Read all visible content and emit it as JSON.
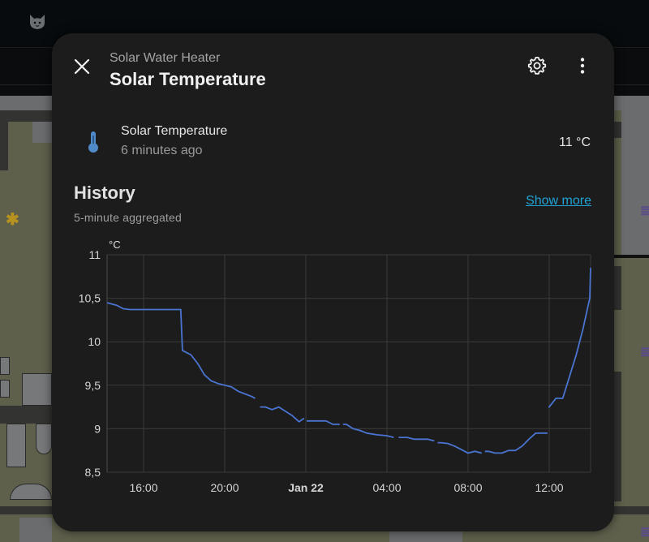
{
  "background": {
    "app_icon": "cat-icon",
    "floorplan_icons": [
      "light-bulb-icon",
      "radiator-icon",
      "radiator-icon",
      "radiator-icon"
    ]
  },
  "dialog": {
    "subtitle": "Solar Water Heater",
    "title": "Solar Temperature",
    "close_icon": "close-icon",
    "settings_icon": "gear-icon",
    "menu_icon": "dots-vertical-icon"
  },
  "entity": {
    "icon": "thermometer-icon",
    "name": "Solar Temperature",
    "last_changed": "6 minutes ago",
    "state": "11 °C"
  },
  "history": {
    "title": "History",
    "subtitle": "5-minute aggregated",
    "show_more": "Show more"
  },
  "colors": {
    "line": "#4a74d1",
    "link": "#20a3d6",
    "icon_thermo": "#4f8bc9",
    "dialog_bg": "#1c1c1c"
  },
  "chart_data": {
    "type": "line",
    "title": "",
    "xlabel": "",
    "ylabel": "°C",
    "ylim": [
      8.5,
      11
    ],
    "y_ticks": [
      "11",
      "10,5",
      "10",
      "9,5",
      "9",
      "8,5"
    ],
    "x_ticks": [
      "16:00",
      "20:00",
      "Jan 22",
      "04:00",
      "08:00",
      "12:00"
    ],
    "grid": true,
    "legend": "none",
    "series": [
      {
        "name": "Solar Temperature",
        "x": [
          "14:12",
          "14:20",
          "14:40",
          "15:00",
          "15:20",
          "16:00",
          "17:00",
          "17:50",
          "17:55",
          "18:20",
          "18:40",
          "19:00",
          "19:20",
          "19:40",
          "20:00",
          "20:20",
          "20:40",
          "21:00",
          "21:20",
          "21:30",
          "22:00",
          "22:20",
          "22:40",
          "23:00",
          "23:20",
          "23:40",
          "23:55",
          "00:10",
          "00:30",
          "01:00",
          "01:20",
          "01:40",
          "02:00",
          "02:20",
          "02:40",
          "03:00",
          "03:30",
          "04:00",
          "04:20",
          "05:00",
          "05:20",
          "06:00",
          "06:20",
          "06:40",
          "07:00",
          "07:20",
          "07:40",
          "08:00",
          "08:20",
          "08:40",
          "09:00",
          "09:20",
          "09:40",
          "10:00",
          "10:20",
          "10:40",
          "11:00",
          "11:20",
          "11:40",
          "11:55",
          "12:00",
          "12:20",
          "12:40",
          "13:00",
          "13:20",
          "13:40",
          "14:00",
          "14:05"
        ],
        "values": [
          10.45,
          10.44,
          10.42,
          10.38,
          10.37,
          10.37,
          10.37,
          10.37,
          9.9,
          9.85,
          9.75,
          9.62,
          9.55,
          9.52,
          9.5,
          9.48,
          9.43,
          9.4,
          9.37,
          9.35,
          9.25,
          9.22,
          9.25,
          9.2,
          9.15,
          9.08,
          9.12,
          9.09,
          9.09,
          9.09,
          9.05,
          9.05,
          9.05,
          9.0,
          8.98,
          8.95,
          8.93,
          8.92,
          8.9,
          8.9,
          8.88,
          8.88,
          8.86,
          8.84,
          8.83,
          8.8,
          8.76,
          8.72,
          8.74,
          8.72,
          8.74,
          8.72,
          8.72,
          8.75,
          8.75,
          8.8,
          8.88,
          8.95,
          8.95,
          8.95,
          9.25,
          9.35,
          9.35,
          9.6,
          9.85,
          10.15,
          10.5,
          10.85
        ]
      }
    ],
    "gaps_after": [
      "21:30",
      "23:55",
      "01:40",
      "04:20",
      "06:20",
      "08:40",
      "11:55"
    ]
  }
}
